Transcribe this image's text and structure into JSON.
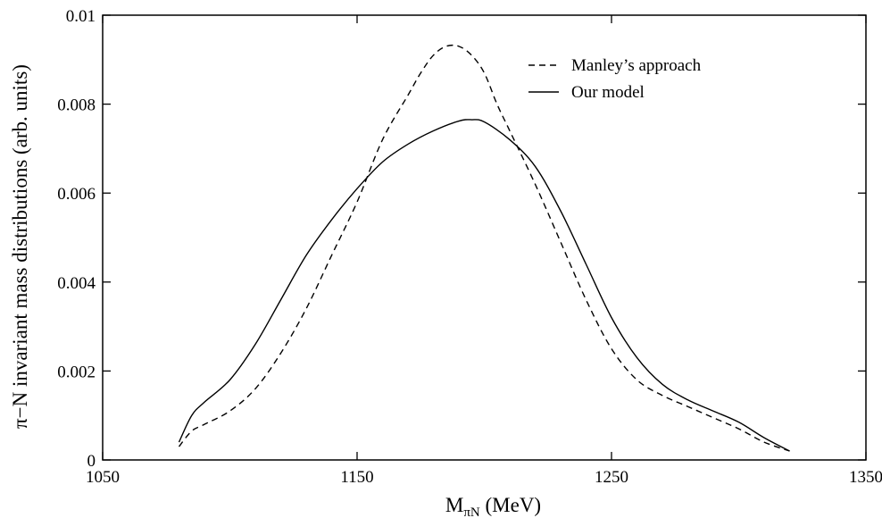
{
  "chart_data": {
    "type": "line",
    "title": "",
    "xlabel_main": "M",
    "xlabel_sub": "πN",
    "xlabel_unit": " (MeV)",
    "ylabel": "π−N invariant mass distributions (arb. units)",
    "xlim": [
      1050,
      1350
    ],
    "ylim": [
      0,
      0.01
    ],
    "xticks": [
      1050,
      1150,
      1250,
      1350
    ],
    "xtick_labels": [
      "1050",
      "1150",
      "1250",
      "1350"
    ],
    "yticks": [
      0,
      0.002,
      0.004,
      0.006,
      0.008,
      0.01
    ],
    "ytick_labels": [
      "0",
      "0.002",
      "0.004",
      "0.006",
      "0.008",
      "0.01"
    ],
    "grid": false,
    "legend_position": "top-right",
    "series": [
      {
        "name": "Manley’s approach",
        "style": "dashed",
        "x": [
          1080,
          1085,
          1090,
          1100,
          1110,
          1120,
          1130,
          1140,
          1150,
          1160,
          1170,
          1175,
          1180,
          1185,
          1190,
          1195,
          1200,
          1205,
          1210,
          1220,
          1230,
          1240,
          1250,
          1260,
          1270,
          1280,
          1290,
          1300,
          1310,
          1320
        ],
        "y": [
          0.0003,
          0.00065,
          0.0008,
          0.0011,
          0.0016,
          0.0024,
          0.0034,
          0.0046,
          0.0058,
          0.0072,
          0.0082,
          0.0087,
          0.0091,
          0.0093,
          0.0093,
          0.0091,
          0.0087,
          0.008,
          0.0074,
          0.0062,
          0.0049,
          0.0036,
          0.0025,
          0.0018,
          0.00145,
          0.0012,
          0.00095,
          0.0007,
          0.0004,
          0.0002
        ]
      },
      {
        "name": "Our model",
        "style": "solid",
        "x": [
          1080,
          1085,
          1090,
          1100,
          1110,
          1120,
          1130,
          1140,
          1150,
          1160,
          1170,
          1180,
          1190,
          1195,
          1200,
          1210,
          1220,
          1230,
          1240,
          1250,
          1260,
          1270,
          1280,
          1290,
          1300,
          1310,
          1320
        ],
        "y": [
          0.0004,
          0.001,
          0.0013,
          0.0018,
          0.0026,
          0.0036,
          0.0046,
          0.0054,
          0.0061,
          0.0067,
          0.0071,
          0.0074,
          0.00762,
          0.00765,
          0.0076,
          0.0072,
          0.0066,
          0.0056,
          0.0044,
          0.0032,
          0.0023,
          0.0017,
          0.00135,
          0.0011,
          0.00085,
          0.0005,
          0.0002
        ]
      }
    ]
  }
}
